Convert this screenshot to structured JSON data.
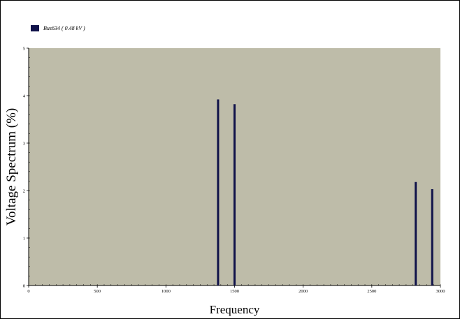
{
  "chart_data": {
    "type": "bar",
    "title": "",
    "xlabel": "Frequency",
    "ylabel": "Voltage Spectrum (%)",
    "xlim": [
      0,
      3000
    ],
    "ylim": [
      0,
      5
    ],
    "x_ticks": [
      0,
      500,
      1000,
      1500,
      2000,
      2500,
      3000
    ],
    "y_ticks": [
      0,
      1,
      2,
      3,
      4,
      5
    ],
    "grid": false,
    "legend_position": "top-left",
    "plot_background": "#bebca9",
    "series": [
      {
        "name": "Bus634 ( 0.48 kV )",
        "color": "#10124a",
        "points": [
          {
            "x": 1380,
            "y": 3.92
          },
          {
            "x": 1500,
            "y": 3.82
          },
          {
            "x": 2820,
            "y": 2.18
          },
          {
            "x": 2940,
            "y": 2.03
          }
        ]
      }
    ]
  }
}
